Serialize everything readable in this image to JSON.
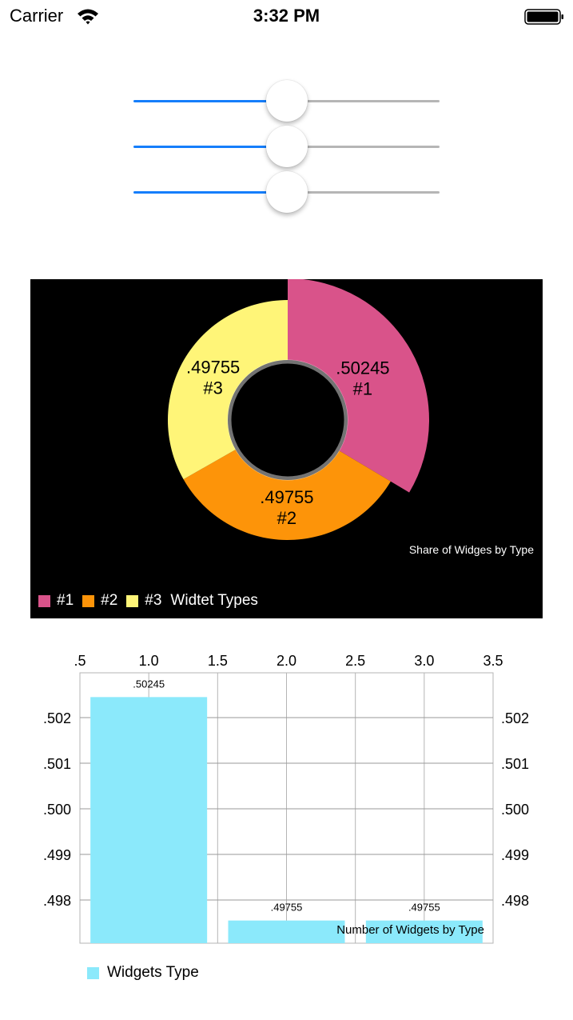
{
  "status_bar": {
    "carrier": "Carrier",
    "time": "3:32 PM"
  },
  "sliders": [
    {
      "name": "slider-1",
      "value": 0.5,
      "accent": "#157efb"
    },
    {
      "name": "slider-2",
      "value": 0.5,
      "accent": "#157efb"
    },
    {
      "name": "slider-3",
      "value": 0.5,
      "accent": "#157efb"
    }
  ],
  "pie_chart": {
    "caption": "Share of Widges by Type",
    "legend_title": "Widtet Types"
  },
  "bar_chart": {
    "caption": "Number of Widgets by Type",
    "legend_label": "Widgets Type"
  },
  "chart_data": [
    {
      "type": "pie",
      "subtitle": "Share of Widges by Type",
      "legend_title": "Widtet Types",
      "legend_position": "bottom-left",
      "background": "#000000",
      "slices": [
        {
          "label": "#1",
          "value": 0.50245,
          "value_label": ".50245",
          "color": "#d9538a"
        },
        {
          "label": "#2",
          "value": 0.49755,
          "value_label": ".49755",
          "color": "#fd9409"
        },
        {
          "label": "#3",
          "value": 0.49755,
          "value_label": ".49755",
          "color": "#fff578"
        }
      ]
    },
    {
      "type": "bar",
      "subtitle": "Number of Widgets by Type",
      "series": [
        {
          "name": "Widgets Type",
          "color": "#8be9fb",
          "x": [
            1.0,
            2.0,
            3.0
          ],
          "values": [
            0.50245,
            0.49755,
            0.49755
          ],
          "value_labels": [
            ".50245",
            ".49755",
            ".49755"
          ]
        }
      ],
      "x_ticks": [
        ".5",
        "1.0",
        "1.5",
        "2.0",
        "2.5",
        "3.0",
        "3.5"
      ],
      "x_range": [
        0.5,
        3.5
      ],
      "y_ticks": [
        ".502",
        ".501",
        ".500",
        ".499",
        ".498"
      ],
      "y_tick_values": [
        0.502,
        0.501,
        0.5,
        0.499,
        0.498
      ],
      "x_axis_position": "top",
      "y_axes": "left and right",
      "grid": true,
      "legend_position": "bottom-left"
    }
  ]
}
